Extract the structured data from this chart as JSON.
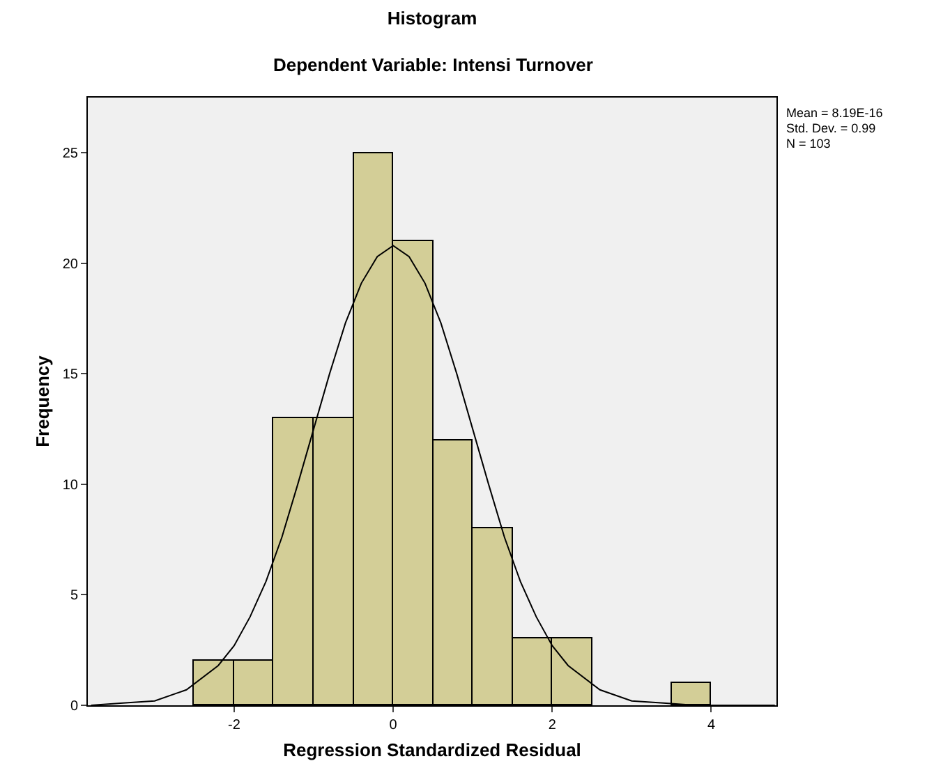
{
  "chart_data": {
    "type": "histogram",
    "title": "Histogram",
    "subtitle": "Dependent Variable: Intensi Turnover",
    "xlabel": "Regression Standardized Residual",
    "ylabel": "Frequency",
    "series": [
      {
        "color": "#d3ce97",
        "bins": [
          -2.5,
          -2,
          -1.5,
          -1,
          -0.5,
          0,
          0.5,
          1,
          1.5,
          2,
          2.5,
          3,
          3.5,
          4
        ],
        "values": [
          2,
          2,
          13,
          13,
          25,
          21,
          12,
          8,
          3,
          3,
          0,
          0,
          1
        ]
      },
      {
        "type": "line",
        "color": "#000000",
        "x": [
          -3.8,
          -3.4,
          -3.0,
          -2.6,
          -2.2,
          -2.0,
          -1.8,
          -1.6,
          -1.4,
          -1.2,
          -1.0,
          -0.8,
          -0.6,
          -0.4,
          -0.2,
          0,
          0.2,
          0.4,
          0.6,
          0.8,
          1.0,
          1.2,
          1.4,
          1.6,
          1.8,
          2.0,
          2.2,
          2.6,
          3.0,
          3.4,
          3.8,
          4.2,
          4.8
        ],
        "values": [
          0.0,
          0.1,
          0.2,
          0.7,
          1.8,
          2.7,
          4.0,
          5.6,
          7.6,
          10.0,
          12.5,
          15.0,
          17.3,
          19.1,
          20.3,
          20.8,
          20.3,
          19.1,
          17.3,
          15.0,
          12.5,
          10.0,
          7.6,
          5.6,
          4.0,
          2.7,
          1.8,
          0.7,
          0.2,
          0.1,
          0.0,
          0.0,
          0.0
        ]
      }
    ],
    "xlim": [
      -3.84,
      4.82
    ],
    "xticks": [
      -2,
      0,
      2,
      4
    ],
    "ylim": [
      0,
      27.5
    ],
    "yticks": [
      0,
      5,
      10,
      15,
      20,
      25
    ],
    "grid": false,
    "annotations": [
      "Mean = 8.19E-16",
      "Std. Dev. = 0.99",
      "N = 103"
    ]
  }
}
